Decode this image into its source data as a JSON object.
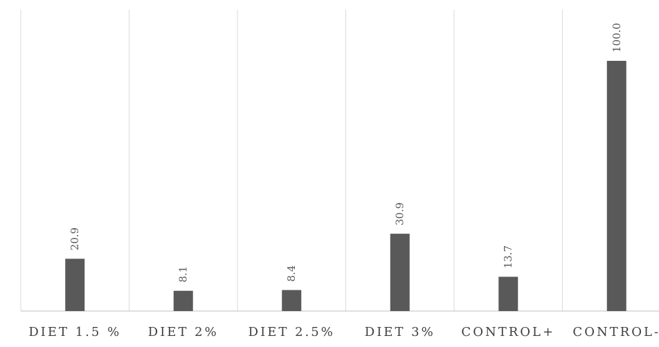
{
  "chart_data": {
    "type": "bar",
    "categories": [
      "DIET 1.5 %",
      "DIET 2%",
      "DIET 2.5%",
      "DIET 3%",
      "CONTROL+",
      "CONTROL-"
    ],
    "values": [
      20.9,
      8.1,
      8.4,
      30.9,
      13.7,
      100.0
    ],
    "value_labels": [
      "20.9",
      "8.1",
      "8.4",
      "30.9",
      "13.7",
      "100.0"
    ],
    "ylim": [
      0,
      100
    ],
    "grid": "vertical separators",
    "colors": {
      "bar": "#595959",
      "grid": "#d9d9d9",
      "axis": "#bfbfbf",
      "text": "#404040"
    }
  }
}
